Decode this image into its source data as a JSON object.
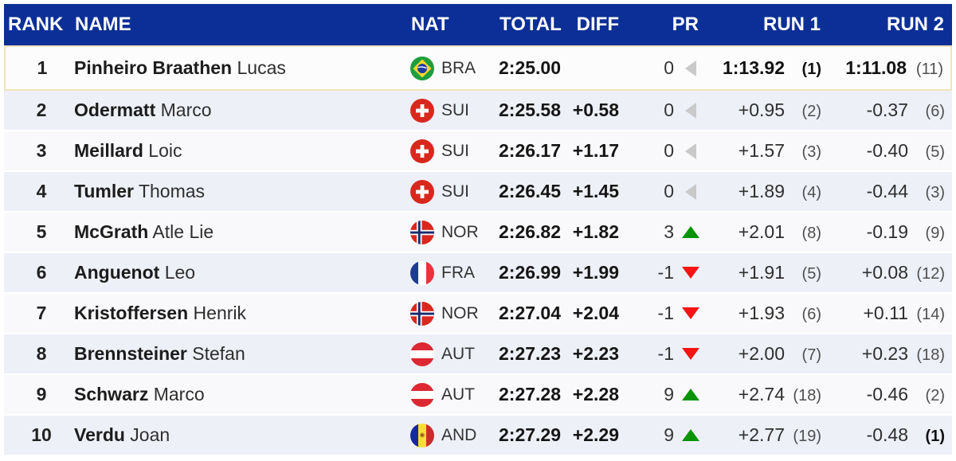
{
  "table": {
    "columns": [
      {
        "label": "RANK"
      },
      {
        "label": "NAME"
      },
      {
        "label": "NAT"
      },
      {
        "label": "TOTAL"
      },
      {
        "label": "DIFF"
      },
      {
        "label": "PR"
      },
      {
        "label": "RUN 1"
      },
      {
        "label": "RUN 2"
      }
    ],
    "rows": [
      {
        "rank": "1",
        "family": "Pinheiro Braathen",
        "given": "Lucas",
        "nat": "BRA",
        "total": "2:25.00",
        "diff": "",
        "pr": "0",
        "pr_dir": "same",
        "run1": "1:13.92",
        "run1_rank": "(1)",
        "run2": "1:11.08",
        "run2_rank": "(11)",
        "run1_bold": true,
        "run1_rank_bold": true,
        "run2_bold": true,
        "run2_rank_bold": false,
        "leader": true
      },
      {
        "rank": "2",
        "family": "Odermatt",
        "given": "Marco",
        "nat": "SUI",
        "total": "2:25.58",
        "diff": "+0.58",
        "pr": "0",
        "pr_dir": "same",
        "run1": "+0.95",
        "run1_rank": "(2)",
        "run2": "-0.37",
        "run2_rank": "(6)"
      },
      {
        "rank": "3",
        "family": "Meillard",
        "given": "Loic",
        "nat": "SUI",
        "total": "2:26.17",
        "diff": "+1.17",
        "pr": "0",
        "pr_dir": "same",
        "run1": "+1.57",
        "run1_rank": "(3)",
        "run2": "-0.40",
        "run2_rank": "(5)"
      },
      {
        "rank": "4",
        "family": "Tumler",
        "given": "Thomas",
        "nat": "SUI",
        "total": "2:26.45",
        "diff": "+1.45",
        "pr": "0",
        "pr_dir": "same",
        "run1": "+1.89",
        "run1_rank": "(4)",
        "run2": "-0.44",
        "run2_rank": "(3)"
      },
      {
        "rank": "5",
        "family": "McGrath",
        "given": "Atle Lie",
        "nat": "NOR",
        "total": "2:26.82",
        "diff": "+1.82",
        "pr": "3",
        "pr_dir": "up",
        "run1": "+2.01",
        "run1_rank": "(8)",
        "run2": "-0.19",
        "run2_rank": "(9)"
      },
      {
        "rank": "6",
        "family": "Anguenot",
        "given": "Leo",
        "nat": "FRA",
        "total": "2:26.99",
        "diff": "+1.99",
        "pr": "-1",
        "pr_dir": "down",
        "run1": "+1.91",
        "run1_rank": "(5)",
        "run2": "+0.08",
        "run2_rank": "(12)"
      },
      {
        "rank": "7",
        "family": "Kristoffersen",
        "given": "Henrik",
        "nat": "NOR",
        "total": "2:27.04",
        "diff": "+2.04",
        "pr": "-1",
        "pr_dir": "down",
        "run1": "+1.93",
        "run1_rank": "(6)",
        "run2": "+0.11",
        "run2_rank": "(14)"
      },
      {
        "rank": "8",
        "family": "Brennsteiner",
        "given": "Stefan",
        "nat": "AUT",
        "total": "2:27.23",
        "diff": "+2.23",
        "pr": "-1",
        "pr_dir": "down",
        "run1": "+2.00",
        "run1_rank": "(7)",
        "run2": "+0.23",
        "run2_rank": "(18)"
      },
      {
        "rank": "9",
        "family": "Schwarz",
        "given": "Marco",
        "nat": "AUT",
        "total": "2:27.28",
        "diff": "+2.28",
        "pr": "9",
        "pr_dir": "up",
        "run1": "+2.74",
        "run1_rank": "(18)",
        "run2": "-0.46",
        "run2_rank": "(2)"
      },
      {
        "rank": "10",
        "family": "Verdu",
        "given": "Joan",
        "nat": "AND",
        "total": "2:27.29",
        "diff": "+2.29",
        "pr": "9",
        "pr_dir": "up",
        "run1": "+2.77",
        "run1_rank": "(19)",
        "run2": "-0.48",
        "run2_rank": "(1)",
        "run2_rank_bold": true
      }
    ]
  },
  "icons": {
    "pr_up": "green-up-triangle-icon",
    "pr_down": "red-down-triangle-icon",
    "pr_same": "gray-left-triangle-icon"
  },
  "colors": {
    "header_bg": "#0b2f96",
    "header_text": "#ffffff",
    "leader_border": "#f2e3bd",
    "leader_bg": "#fcfcfd",
    "row_even_bg": "#eef0f8",
    "row_odd_bg": "#f9f9fb",
    "pr_up": "#089404",
    "pr_down": "#f41414",
    "pr_same": "#c9c9c9"
  },
  "flags": {
    "BRA": {
      "type": "brazil",
      "colors": [
        "#1e9e3c",
        "#ffd62e",
        "#1d3e9e",
        "#ffffff"
      ]
    },
    "SUI": {
      "type": "cross",
      "colors": [
        "#d8281e",
        "#ffffff"
      ]
    },
    "NOR": {
      "type": "nordic",
      "colors": [
        "#d8281e",
        "#ffffff",
        "#1a2a6c"
      ]
    },
    "FRA": {
      "type": "vertical",
      "colors": [
        "#1e3c91",
        "#ffffff",
        "#e8323c"
      ]
    },
    "AUT": {
      "type": "horizontal",
      "colors": [
        "#dc2832",
        "#ffffff",
        "#dc2832"
      ]
    },
    "AND": {
      "type": "vertical-emblem",
      "colors": [
        "#1428a0",
        "#ffdd33",
        "#d02832",
        "#c9a227"
      ]
    }
  }
}
